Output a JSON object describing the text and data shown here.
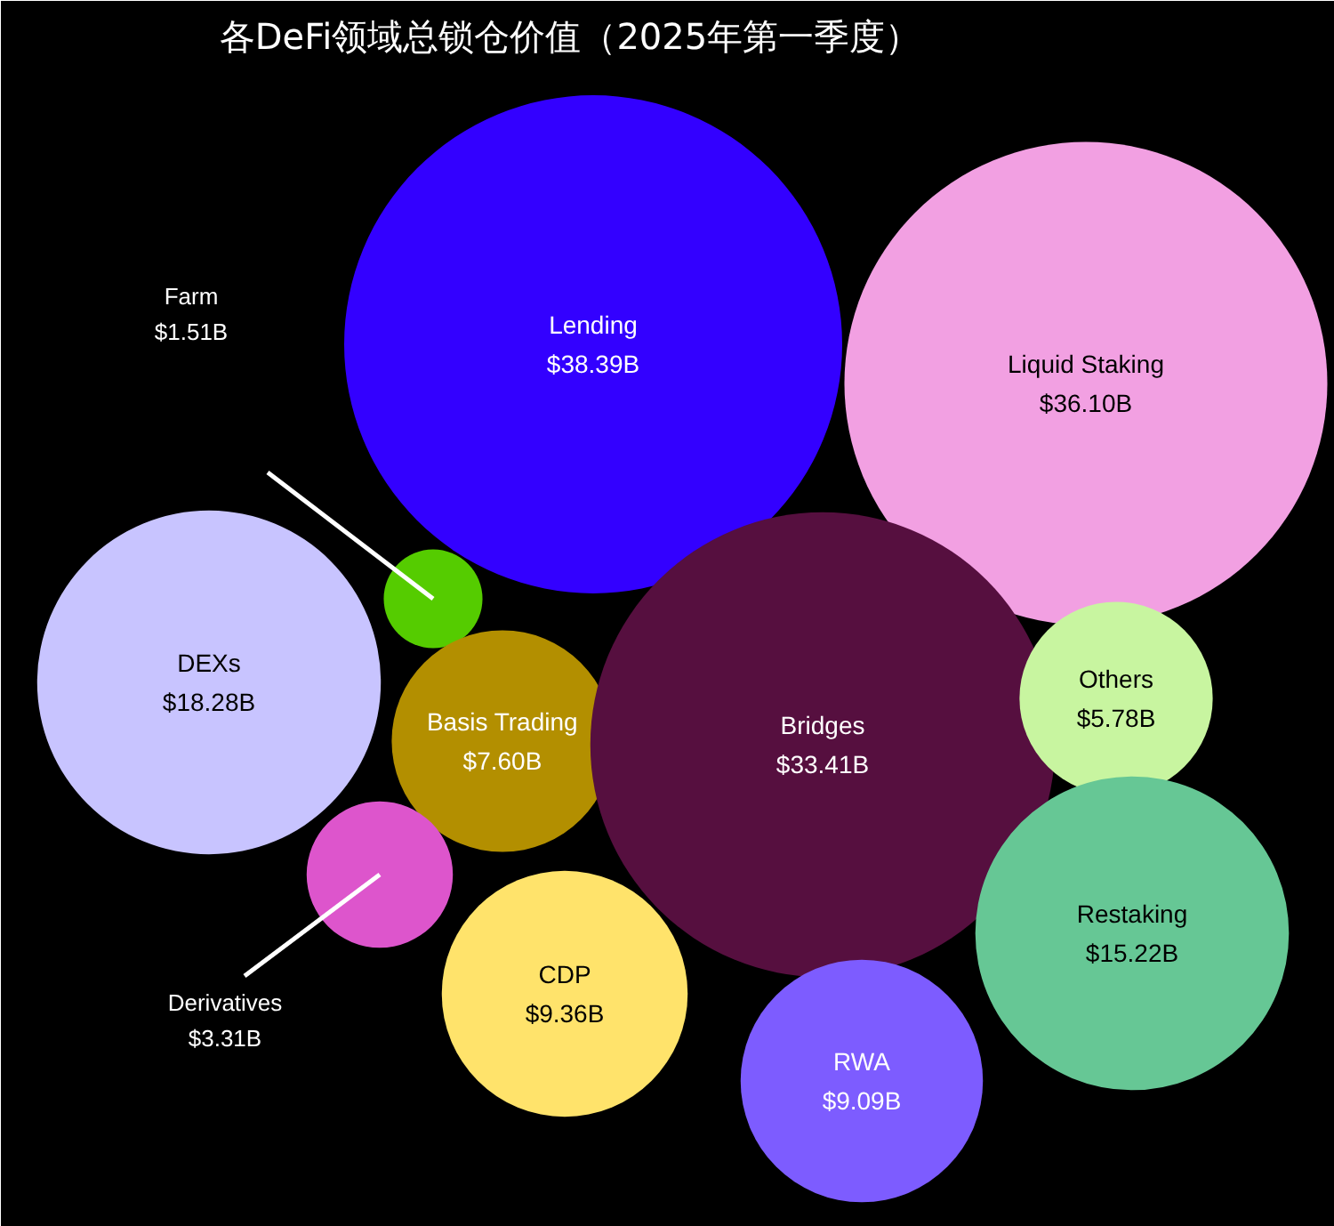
{
  "chart_data": {
    "type": "other",
    "title": "各DeFi领域总锁仓价值（2025年第一季度）",
    "categories": [
      "Lending",
      "Liquid Staking",
      "Farm",
      "DEXs",
      "Basis Trading",
      "Bridges",
      "Others",
      "Derivatives",
      "Restaking",
      "CDP",
      "RWA"
    ],
    "values": [
      38.39,
      36.1,
      1.51,
      18.28,
      7.6,
      33.41,
      5.78,
      3.31,
      15.22,
      9.36,
      9.09
    ],
    "value_labels": [
      "$38.39B",
      "$36.10B",
      "$1.51B",
      "$18.28B",
      "$7.60B",
      "$33.41B",
      "$5.78B",
      "$3.31B",
      "$15.22B",
      "$9.36B",
      "$9.09B"
    ],
    "colors": [
      "#3300ff",
      "#f2a0e2",
      "#55cc00",
      "#c8c4ff",
      "#b38f00",
      "#560f3f",
      "#c8f5a0",
      "#dd55cc",
      "#66c795",
      "#ffe36b",
      "#7d5cff"
    ]
  }
}
